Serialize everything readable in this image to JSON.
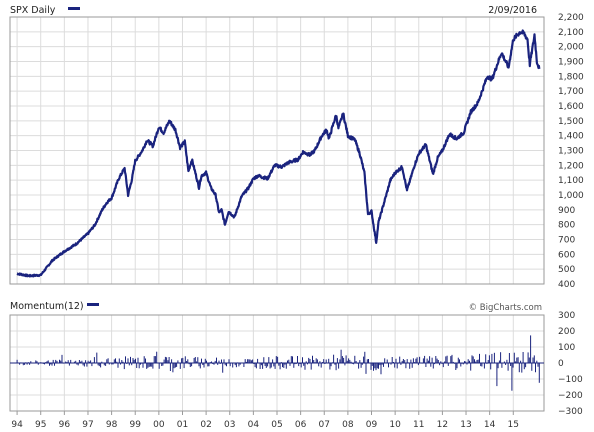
{
  "colors": {
    "series": "#1a237e",
    "grid": "#dcdcdc",
    "frame": "#9a9a9a",
    "zero": "#1a237e",
    "text": "#333333"
  },
  "chart_data": [
    {
      "type": "line",
      "title": "SPX Daily",
      "date_label": "2/09/2016",
      "credit": "© BigCharts.com",
      "xlabel": "",
      "ylabel": "",
      "x_ticks": [
        "94",
        "95",
        "96",
        "97",
        "98",
        "99",
        "00",
        "01",
        "02",
        "03",
        "04",
        "05",
        "06",
        "07",
        "08",
        "09",
        "10",
        "11",
        "12",
        "13",
        "14",
        "15"
      ],
      "ylim": [
        400,
        2200
      ],
      "y_ticks": [
        "2,200",
        "2,100",
        "2,000",
        "1,900",
        "1,800",
        "1,700",
        "1,600",
        "1,500",
        "1,400",
        "1,300",
        "1,200",
        "1,100",
        "1,000",
        "900",
        "800",
        "700",
        "600",
        "500",
        "400"
      ],
      "grid": true,
      "series": [
        {
          "name": "SPX Daily",
          "x": [
            1994.0,
            1994.5,
            1995.0,
            1995.5,
            1996.0,
            1996.5,
            1997.0,
            1997.3,
            1997.6,
            1997.8,
            1998.0,
            1998.3,
            1998.55,
            1998.7,
            1998.85,
            1999.0,
            1999.3,
            1999.5,
            1999.75,
            2000.0,
            2000.2,
            2000.45,
            2000.7,
            2000.9,
            2001.1,
            2001.25,
            2001.4,
            2001.7,
            2001.8,
            2002.0,
            2002.2,
            2002.4,
            2002.55,
            2002.65,
            2002.8,
            2002.95,
            2003.2,
            2003.5,
            2003.8,
            2004.0,
            2004.2,
            2004.6,
            2004.9,
            2005.2,
            2005.5,
            2005.9,
            2006.1,
            2006.4,
            2006.6,
            2006.9,
            2007.1,
            2007.2,
            2007.5,
            2007.6,
            2007.8,
            2008.0,
            2008.3,
            2008.5,
            2008.7,
            2008.85,
            2009.0,
            2009.1,
            2009.2,
            2009.3,
            2009.5,
            2009.8,
            2010.0,
            2010.3,
            2010.5,
            2010.8,
            2011.0,
            2011.3,
            2011.6,
            2011.8,
            2012.0,
            2012.3,
            2012.6,
            2012.9,
            2013.2,
            2013.5,
            2013.9,
            2014.1,
            2014.5,
            2014.8,
            2015.0,
            2015.3,
            2015.45,
            2015.6,
            2015.7,
            2015.9,
            2016.0,
            2016.1
          ],
          "values": [
            470,
            455,
            460,
            560,
            620,
            670,
            740,
            800,
            900,
            950,
            980,
            1110,
            1180,
            1000,
            1100,
            1230,
            1300,
            1370,
            1330,
            1460,
            1420,
            1500,
            1440,
            1320,
            1360,
            1160,
            1240,
            1050,
            1130,
            1150,
            1050,
            1000,
            880,
            900,
            800,
            890,
            850,
            990,
            1050,
            1110,
            1130,
            1110,
            1200,
            1190,
            1220,
            1240,
            1290,
            1270,
            1300,
            1400,
            1440,
            1380,
            1540,
            1450,
            1550,
            1400,
            1370,
            1280,
            1150,
            870,
            890,
            780,
            680,
            820,
            930,
            1100,
            1150,
            1190,
            1030,
            1190,
            1280,
            1340,
            1140,
            1250,
            1300,
            1410,
            1380,
            1420,
            1560,
            1620,
            1800,
            1780,
            1960,
            1860,
            2050,
            2100,
            2090,
            2050,
            1880,
            2080,
            1900,
            1850
          ]
        }
      ]
    },
    {
      "type": "bar",
      "title": "Momentum(12)",
      "ylim": [
        -300,
        300
      ],
      "y_ticks": [
        "300",
        "200",
        "100",
        "0",
        "−100",
        "−200",
        "−300"
      ],
      "grid": true,
      "series": [
        {
          "name": "Momentum(12)",
          "x_start": 1994.0,
          "x_end": 2016.1,
          "count": 420,
          "values_note_omitted": ""
        }
      ]
    }
  ]
}
